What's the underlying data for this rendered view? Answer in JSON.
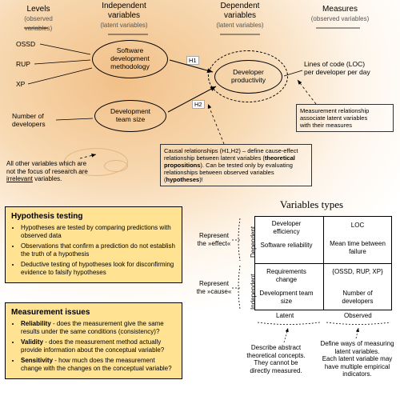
{
  "headers": {
    "levels": {
      "title": "Levels",
      "sub": "(observed variables)"
    },
    "iv": {
      "title": "Independent\nvariables",
      "sub": "(latent variables)"
    },
    "dv": {
      "title": "Dependent\nvariables",
      "sub": "(latent variables)"
    },
    "measures": {
      "title": "Measures",
      "sub": "(observed variables)"
    }
  },
  "observed_left": {
    "ossd": "OSSD",
    "rup": "RUP",
    "xp": "XP",
    "numdev": "Number of\ndevelopers"
  },
  "latent": {
    "sdm": "Software\ndevelopment\nmethodology",
    "teamsize": "Development\nteam size",
    "prod": "Developer\nproductivity"
  },
  "measures": {
    "loc": "Lines of code (LOC)\nper developer per day"
  },
  "edge_labels": {
    "h1": "H1",
    "h2": "H2"
  },
  "irrelevant": "All other variables which\nare not the focus of\nresearch are irrelevant\nvariables.",
  "irrelevant_u": "irrelevant",
  "callout_measure": "Measurement relationship\nassociate latent variables\nwith their measures",
  "callout_causal_a": "Causal relationships (H1,H2) – define cause-effect relationship between latent variables (",
  "callout_causal_b": "theoretical propositions",
  "callout_causal_c": "). Can be tested only by evaluating relationships between observed variables (",
  "callout_causal_d": "hypotheses",
  "callout_causal_e": ")!",
  "hyp": {
    "title": "Hypothesis testing",
    "items": [
      "Hypotheses are tested by comparing predictions with observed data",
      "Observations that confirm a prediction do not establish the truth of a hypothesis",
      "Deductive testing of hypotheses look for disconfirming evidence to falsify hypotheses"
    ]
  },
  "meas": {
    "title": "Measurement issues",
    "items_html": [
      "<b>Reliability</b> - does the measurement give the same results under the same conditions (consistency)?",
      "<b>Validity</b> - does the measurement method actually provide information about the conceptual variable?",
      "<b>Sensitivity</b> - how much does the measurement change with the changes on the conceptual variable?"
    ]
  },
  "vt": {
    "title": "Variables types",
    "cells": {
      "dep_lat1": "Developer\nefficiency",
      "dep_lat2": "Software\nreliability",
      "dep_obs1": "LOC",
      "dep_obs2": "Mean time\nbetween failure",
      "ind_lat1": "Requirements\nchange",
      "ind_lat2": "Development\nteam size",
      "ind_obs1": "{OSSD, RUP,\nXP}",
      "ind_obs2": "Number of\ndevelopers"
    },
    "axis": {
      "dep": "Dependent",
      "ind": "Independent",
      "lat": "Latent",
      "obs": "Observed"
    },
    "brace_dep": "Represent\nthe »effect«",
    "brace_ind": "Represent\nthe »cause«",
    "brace_lat": "Describe abstract\ntheoretical concepts.\nThey cannot be\ndirectly measured.",
    "brace_obs": "Define ways of measuring\nlatent variables.\nEach latent variable may\nhave multiple empirical\nindicators."
  },
  "colors": {
    "line": "#000000",
    "dash": "#000000",
    "highlight": "#ffe292"
  }
}
